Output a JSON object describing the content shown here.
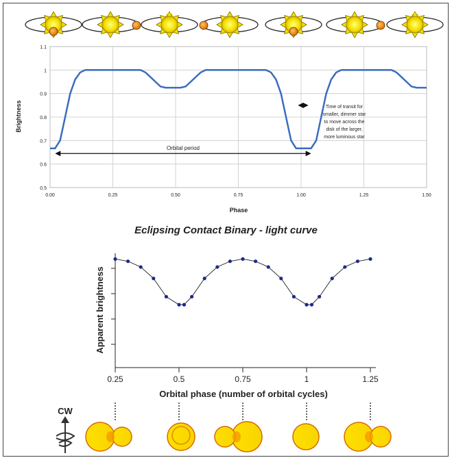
{
  "chart_data": [
    {
      "type": "line",
      "xlabel": "Phase",
      "ylabel": "Brightness",
      "xlim": [
        0,
        1.5
      ],
      "ylim": [
        0.5,
        1.1
      ],
      "xticks": [
        "0.00",
        "0.25",
        "0.50",
        "0.75",
        "1.00",
        "1.25",
        "1.50"
      ],
      "yticks": [
        "0.5",
        "0.6",
        "0.7",
        "0.8",
        "0.9",
        "1",
        "1.1"
      ],
      "grid": true,
      "x": [
        0,
        0.02,
        0.04,
        0.06,
        0.08,
        0.1,
        0.12,
        0.14,
        0.16,
        0.2,
        0.25,
        0.3,
        0.34,
        0.36,
        0.38,
        0.4,
        0.42,
        0.44,
        0.46,
        0.48,
        0.5,
        0.52,
        0.54,
        0.56,
        0.58,
        0.6,
        0.62,
        0.64,
        0.66,
        0.7,
        0.75,
        0.8,
        0.84,
        0.86,
        0.88,
        0.9,
        0.92,
        0.94,
        0.96,
        0.98,
        1.0,
        1.02,
        1.04,
        1.06,
        1.08,
        1.1,
        1.12,
        1.14,
        1.16,
        1.2,
        1.25,
        1.3,
        1.34,
        1.36,
        1.38,
        1.4,
        1.42,
        1.44,
        1.46,
        1.48,
        1.5
      ],
      "y": [
        0.667,
        0.667,
        0.7,
        0.8,
        0.9,
        0.96,
        0.99,
        1.0,
        1.0,
        1.0,
        1.0,
        1.0,
        1.0,
        1.0,
        0.99,
        0.97,
        0.95,
        0.93,
        0.925,
        0.925,
        0.925,
        0.925,
        0.93,
        0.95,
        0.97,
        0.99,
        1.0,
        1.0,
        1.0,
        1.0,
        1.0,
        1.0,
        1.0,
        1.0,
        0.99,
        0.96,
        0.9,
        0.8,
        0.7,
        0.667,
        0.667,
        0.667,
        0.667,
        0.7,
        0.8,
        0.9,
        0.96,
        0.99,
        1.0,
        1.0,
        1.0,
        1.0,
        1.0,
        1.0,
        0.99,
        0.97,
        0.95,
        0.93,
        0.925,
        0.925,
        0.925
      ],
      "annotations": [
        {
          "text": "Orbital period",
          "x1": 0.02,
          "x2": 1.04,
          "y": 0.645
        },
        {
          "text": "Time of transit for smaller, dimmer star to move across the disk of the larger, more luminous star",
          "x1": 0.96,
          "x2": 1.04,
          "y": 0.85
        }
      ],
      "colors": {
        "line": "#3a6cc0"
      }
    },
    {
      "type": "line",
      "title": "Eclipsing Contact Binary - light curve",
      "xlabel": "Orbital phase (number of orbital cycles)",
      "ylabel": "Apparent brightness",
      "xticks": [
        "0.25",
        "0.5",
        "0.75",
        "1",
        "1.25"
      ],
      "xlim": [
        0.25,
        1.25
      ],
      "ylim": [
        0,
        1
      ],
      "x": [
        0.25,
        0.3,
        0.35,
        0.4,
        0.45,
        0.5,
        0.52,
        0.55,
        0.6,
        0.65,
        0.7,
        0.75,
        0.8,
        0.85,
        0.9,
        0.95,
        1.0,
        1.02,
        1.05,
        1.1,
        1.15,
        1.2,
        1.25
      ],
      "y": [
        0.95,
        0.93,
        0.88,
        0.78,
        0.62,
        0.55,
        0.55,
        0.62,
        0.78,
        0.88,
        0.93,
        0.95,
        0.93,
        0.88,
        0.78,
        0.62,
        0.55,
        0.55,
        0.62,
        0.78,
        0.88,
        0.93,
        0.95
      ],
      "colors": {
        "points": "#1a2a8a",
        "line": "#333333"
      }
    }
  ],
  "diagram": {
    "direction_label": "CW"
  }
}
